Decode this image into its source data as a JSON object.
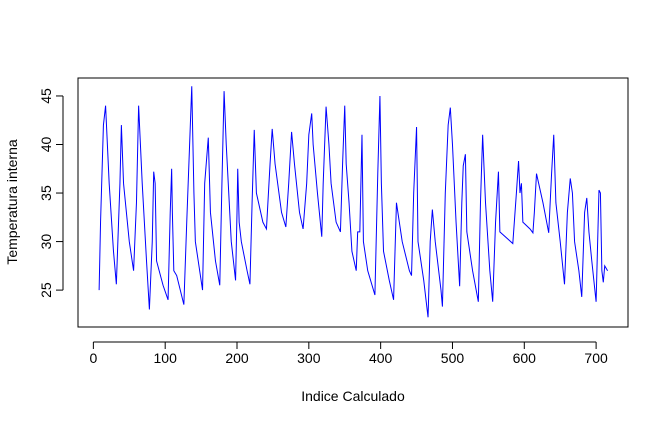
{
  "chart_data": {
    "type": "line",
    "x_label": "Indice Calculado",
    "y_label": "Temperatura interna",
    "x": [
      8,
      10,
      14,
      17,
      22,
      28,
      32,
      37,
      39,
      42,
      50,
      56,
      60,
      63,
      68,
      74,
      78,
      82,
      84,
      86,
      88,
      97,
      104,
      107,
      109,
      110,
      112,
      116,
      126,
      130,
      134,
      137,
      140,
      142,
      152,
      155,
      160,
      163,
      170,
      176,
      179,
      182,
      185,
      192,
      198,
      200,
      201,
      203,
      206,
      214,
      218,
      221,
      224,
      227,
      236,
      241,
      246,
      249,
      253,
      262,
      268,
      272,
      276,
      280,
      287,
      292,
      297,
      300,
      304,
      306,
      312,
      318,
      320,
      324,
      328,
      331,
      338,
      344,
      347,
      350,
      352,
      356,
      360,
      366,
      368,
      371,
      374,
      376,
      382,
      392,
      396,
      399,
      401,
      404,
      412,
      418,
      422,
      430,
      440,
      443,
      446,
      450,
      452,
      460,
      466,
      469,
      472,
      476,
      484,
      486,
      490,
      494,
      497,
      500,
      505,
      510,
      513,
      515,
      518,
      520,
      528,
      536,
      539,
      542,
      546,
      552,
      556,
      560,
      564,
      566,
      584,
      589,
      592,
      594,
      596,
      598,
      608,
      612,
      614,
      617,
      626,
      634,
      638,
      641,
      644,
      650,
      656,
      660,
      664,
      667,
      670,
      676,
      680,
      684,
      687,
      690,
      694,
      700,
      704,
      706,
      708,
      710,
      712,
      716
    ],
    "series": [
      {
        "color": "#0000ff",
        "values": [
          25,
          32,
          42,
          44,
          36,
          29,
          25.6,
          36,
          42,
          36,
          30,
          27,
          34,
          44,
          36,
          28,
          23,
          30,
          37.2,
          36,
          28,
          25.5,
          24,
          33,
          37.5,
          33,
          27,
          26.5,
          23.5,
          32,
          40,
          46,
          35,
          30,
          25,
          36,
          40.7,
          33,
          28,
          25.5,
          36,
          45.5,
          40,
          30,
          26,
          33,
          37.5,
          32,
          30,
          27,
          25.6,
          34,
          41.5,
          35,
          32,
          31.3,
          38,
          41.6,
          38,
          33,
          31.5,
          36,
          41.3,
          38,
          33,
          31.3,
          36,
          41,
          43.2,
          40,
          35,
          30.5,
          36,
          43.9,
          40,
          36,
          32,
          31,
          38,
          44,
          38,
          34,
          29,
          27,
          31,
          31,
          41,
          30,
          27,
          24.5,
          37,
          45,
          36,
          29,
          26,
          24,
          34,
          30,
          27,
          26.5,
          35,
          41.8,
          30,
          26,
          22.2,
          30,
          33.3,
          30,
          25,
          23.3,
          35,
          42,
          43.8,
          40,
          32,
          25.4,
          34,
          37.8,
          39,
          31,
          27,
          23.8,
          34,
          41,
          34,
          27,
          23.8,
          32,
          37.2,
          31,
          29.8,
          35,
          38.3,
          35,
          36,
          32,
          31.3,
          30.9,
          33,
          37,
          34,
          30.9,
          37,
          41,
          34,
          30,
          25.6,
          33,
          36.5,
          35,
          30,
          27,
          24.3,
          33,
          34.5,
          31,
          28,
          23.8,
          35.3,
          35,
          27,
          25.8,
          27.5,
          27
        ]
      }
    ],
    "xlim": [
      -21.4,
      744.4
    ],
    "ylim": [
      21.2,
      46.85
    ],
    "xticks": [
      0,
      100,
      200,
      300,
      400,
      500,
      600,
      700
    ],
    "yticks": [
      25,
      30,
      35,
      40,
      45
    ]
  }
}
